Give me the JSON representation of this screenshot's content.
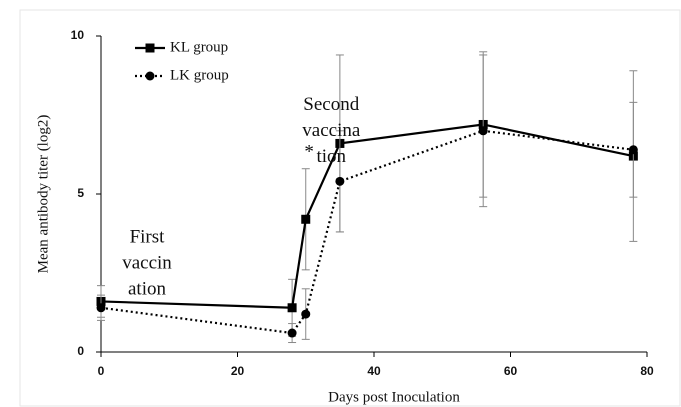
{
  "chart_data": {
    "type": "line",
    "xlabel": "Days post Inoculation",
    "ylabel": "Mean antibody titer  (log2)",
    "x": [
      0,
      28,
      30,
      35,
      56,
      78
    ],
    "series": [
      {
        "name": "KL group",
        "color": "#000000",
        "marker": "square",
        "dash": false,
        "values": [
          1.6,
          1.4,
          4.2,
          6.6,
          7.2,
          6.2
        ],
        "errors": [
          0.5,
          0.9,
          1.6,
          2.8,
          2.3,
          2.7
        ]
      },
      {
        "name": "LK group",
        "color": "#000000",
        "marker": "circle",
        "dash": true,
        "values": [
          1.4,
          0.6,
          1.2,
          5.4,
          7.0,
          6.4
        ],
        "errors": [
          0.4,
          0.3,
          0.8,
          1.6,
          2.4,
          1.5
        ]
      }
    ],
    "xlim": [
      0,
      80
    ],
    "xticks": [
      0,
      20,
      40,
      60,
      80
    ],
    "ylim": [
      0,
      10
    ],
    "yticks": [
      0,
      5,
      10
    ],
    "annotations": [
      {
        "lines": [
          "First",
          "vaccin",
          "ation"
        ],
        "x": 0,
        "y": 3.6
      },
      {
        "lines": [
          "Second",
          "vaccina",
          "tion"
        ],
        "x": 27,
        "y": 7.8
      },
      {
        "lines": [
          "*"
        ],
        "x": 30.5,
        "y": 6.3
      }
    ]
  }
}
